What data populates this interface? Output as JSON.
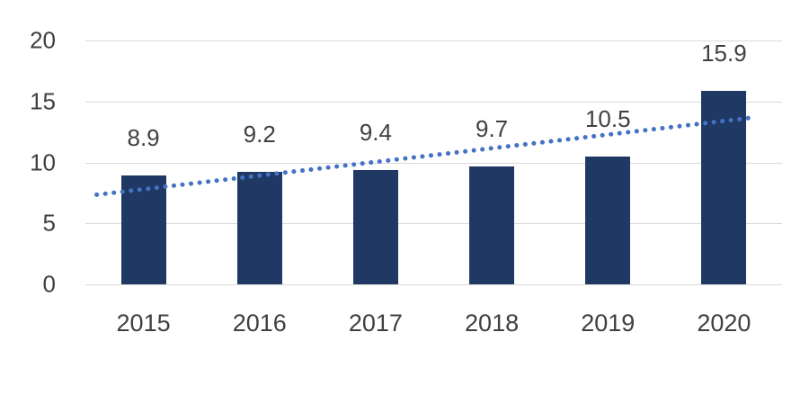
{
  "chart_data": {
    "type": "bar",
    "title": "",
    "categories": [
      "2015",
      "2016",
      "2017",
      "2018",
      "2019",
      "2020"
    ],
    "values": [
      8.9,
      9.2,
      9.4,
      9.7,
      10.5,
      15.9
    ],
    "data_labels": [
      "8.9",
      "9.2",
      "9.4",
      "9.7",
      "10.5",
      "15.9"
    ],
    "y_ticks": [
      0,
      5,
      10,
      15,
      20
    ],
    "ylim": [
      0,
      20
    ],
    "xlabel": "",
    "ylabel": "",
    "grid": true,
    "legend": "none",
    "bar_color": "#1f3864",
    "gridline_color": "#d9d9d9",
    "text_color": "#404040",
    "trendline": {
      "type": "linear",
      "style": "dotted",
      "color": "#4472c4",
      "start_value": 7.8,
      "end_value": 13.4
    }
  }
}
